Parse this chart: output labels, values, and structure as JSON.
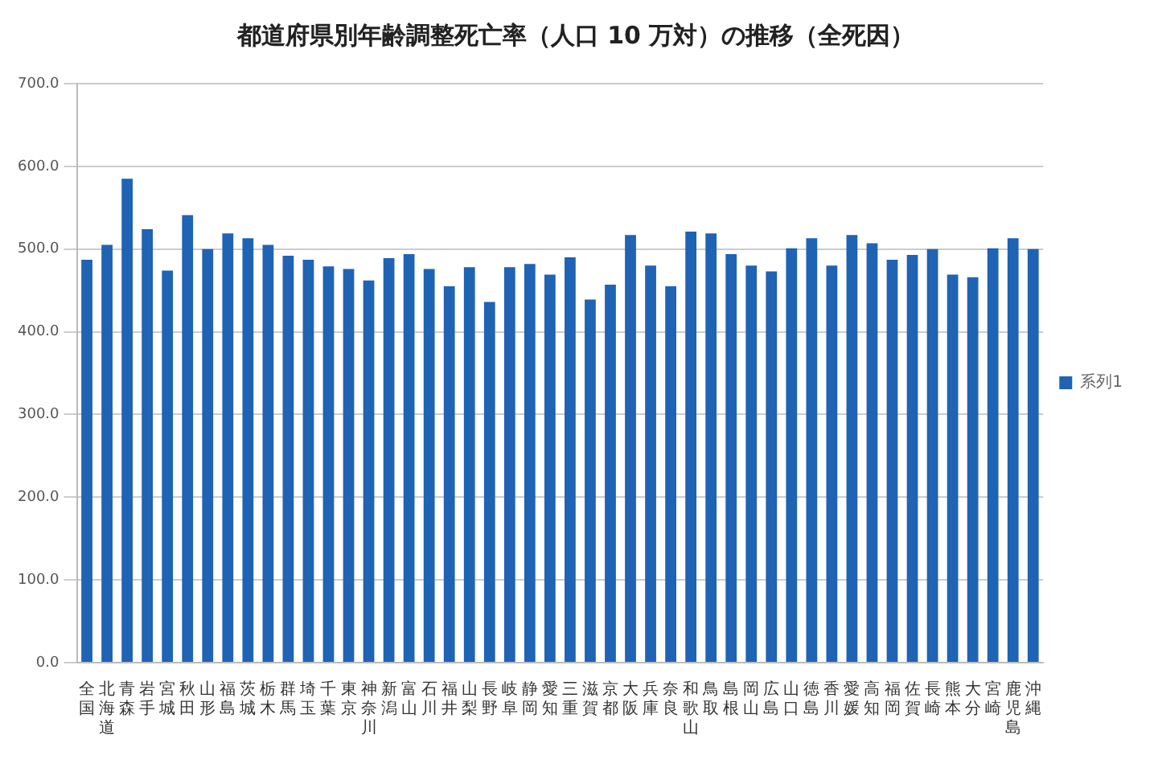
{
  "chart_data": {
    "type": "bar",
    "title": "都道府県別年齢調整死亡率（人口 10 万対）の推移（全死因）",
    "categories": [
      "全国",
      "北海道",
      "青森",
      "岩手",
      "宮城",
      "秋田",
      "山形",
      "福島",
      "茨城",
      "栃木",
      "群馬",
      "埼玉",
      "千葉",
      "東京",
      "神奈川",
      "新潟",
      "富山",
      "石川",
      "福井",
      "山梨",
      "長野",
      "岐阜",
      "静岡",
      "愛知",
      "三重",
      "滋賀",
      "京都",
      "大阪",
      "兵庫",
      "奈良",
      "和歌山",
      "鳥取",
      "島根",
      "岡山",
      "広島",
      "山口",
      "徳島",
      "香川",
      "愛媛",
      "高知",
      "福岡",
      "佐賀",
      "長崎",
      "熊本",
      "大分",
      "宮崎",
      "鹿児島",
      "沖縄"
    ],
    "series": [
      {
        "name": "系列1",
        "color": "#1f63b4",
        "values": [
          487,
          505,
          585,
          524,
          474,
          541,
          500,
          519,
          513,
          505,
          492,
          487,
          479,
          476,
          462,
          489,
          494,
          476,
          455,
          478,
          436,
          478,
          482,
          469,
          490,
          439,
          457,
          517,
          480,
          455,
          521,
          519,
          494,
          480,
          473,
          501,
          513,
          480,
          517,
          507,
          487,
          493,
          500,
          469,
          466,
          501,
          513,
          500
        ]
      }
    ],
    "ylim": [
      0,
      700
    ],
    "yticks": [
      {
        "value": 0,
        "label": "0.0"
      },
      {
        "value": 100,
        "label": "100.0"
      },
      {
        "value": 200,
        "label": "200.0"
      },
      {
        "value": 300,
        "label": "300.0"
      },
      {
        "value": 400,
        "label": "400.0"
      },
      {
        "value": 500,
        "label": "500.0"
      },
      {
        "value": 600,
        "label": "600.0"
      },
      {
        "value": 700,
        "label": "700.0"
      }
    ],
    "grid": "y",
    "legend": "right"
  }
}
